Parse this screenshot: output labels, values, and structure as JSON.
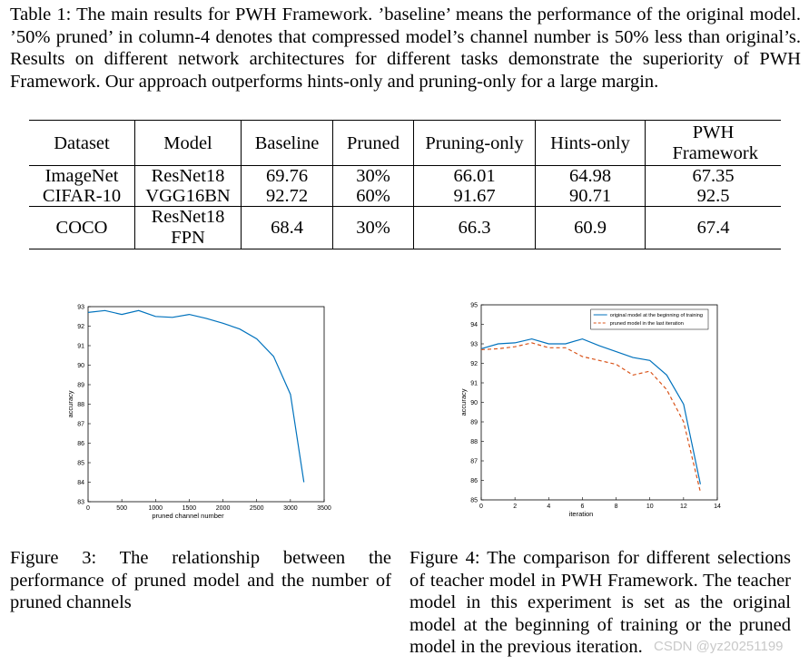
{
  "table_caption": "Table 1: The main results for PWH Framework. ’baseline’ means the performance of the original model. ’50% pruned’ in column-4 denotes that compressed model’s channel number is 50% less than original’s. Results on different network architectures for different tasks demonstrate the superiority of PWH Framework. Our approach outperforms hints-only and pruning-only for a large margin.",
  "table": {
    "headers": [
      "Dataset",
      "Model",
      "Baseline",
      "Pruned",
      "Pruning-only",
      "Hints-only",
      "PWH Framework"
    ],
    "rows": [
      [
        "ImageNet",
        "ResNet18",
        "69.76",
        "30%",
        "66.01",
        "64.98",
        "67.35"
      ],
      [
        "CIFAR-10",
        "VGG16BN",
        "92.72",
        "60%",
        "91.67",
        "90.71",
        "92.5"
      ],
      [
        "COCO",
        "ResNet18 FPN",
        "68.4",
        "30%",
        "66.3",
        "60.9",
        "67.4"
      ]
    ]
  },
  "figure3_caption": "Figure 3: The relationship between the performance of pruned model and the number of pruned channels",
  "figure4_caption": "Figure 4: The comparison for different selections of teacher model in PWH Framework. The teacher model in this experiment is set as the original model at the beginning of training or the pruned model in the previous iteration.",
  "watermark": "CSDN @yz20251199",
  "chart_data": [
    {
      "type": "line",
      "title": "",
      "xlabel": "pruned channel number",
      "ylabel": "accuracy",
      "xlim": [
        0,
        3500
      ],
      "ylim": [
        83,
        93
      ],
      "xticks": [
        0,
        500,
        1000,
        1500,
        2000,
        2500,
        3000,
        3500
      ],
      "yticks": [
        83,
        84,
        85,
        86,
        87,
        88,
        89,
        90,
        91,
        92,
        93
      ],
      "grid": false,
      "series": [
        {
          "color": "#0072BD",
          "dash": "solid",
          "x": [
            0,
            250,
            500,
            750,
            1000,
            1250,
            1500,
            1750,
            2000,
            2250,
            2500,
            2750,
            3000,
            3200
          ],
          "y": [
            92.7,
            92.8,
            92.6,
            92.8,
            92.5,
            92.45,
            92.6,
            92.4,
            92.15,
            91.85,
            91.35,
            90.45,
            88.5,
            84.0
          ]
        }
      ]
    },
    {
      "type": "line",
      "title": "",
      "xlabel": "iteration",
      "ylabel": "accuracy",
      "xlim": [
        0,
        14
      ],
      "ylim": [
        85,
        95
      ],
      "xticks": [
        0,
        2,
        4,
        6,
        8,
        10,
        12,
        14
      ],
      "yticks": [
        85,
        86,
        87,
        88,
        89,
        90,
        91,
        92,
        93,
        94,
        95
      ],
      "grid": false,
      "legend": "top-right",
      "series": [
        {
          "name": "original model at the beginning of training",
          "color": "#0072BD",
          "dash": "solid",
          "x": [
            0,
            1,
            2,
            3,
            4,
            5,
            6,
            7,
            8,
            9,
            10,
            11,
            12,
            13
          ],
          "y": [
            92.75,
            93.0,
            93.05,
            93.25,
            93.0,
            93.0,
            93.25,
            92.9,
            92.6,
            92.3,
            92.15,
            91.4,
            89.9,
            85.8
          ]
        },
        {
          "name": "pruned model in the last iteration",
          "color": "#D95319",
          "dash": "dashed",
          "x": [
            0,
            1,
            2,
            3,
            4,
            5,
            6,
            7,
            8,
            9,
            10,
            11,
            12,
            13
          ],
          "y": [
            92.7,
            92.75,
            92.85,
            93.05,
            92.8,
            92.8,
            92.35,
            92.15,
            91.95,
            91.4,
            91.6,
            90.65,
            89.0,
            85.4
          ]
        }
      ]
    }
  ]
}
